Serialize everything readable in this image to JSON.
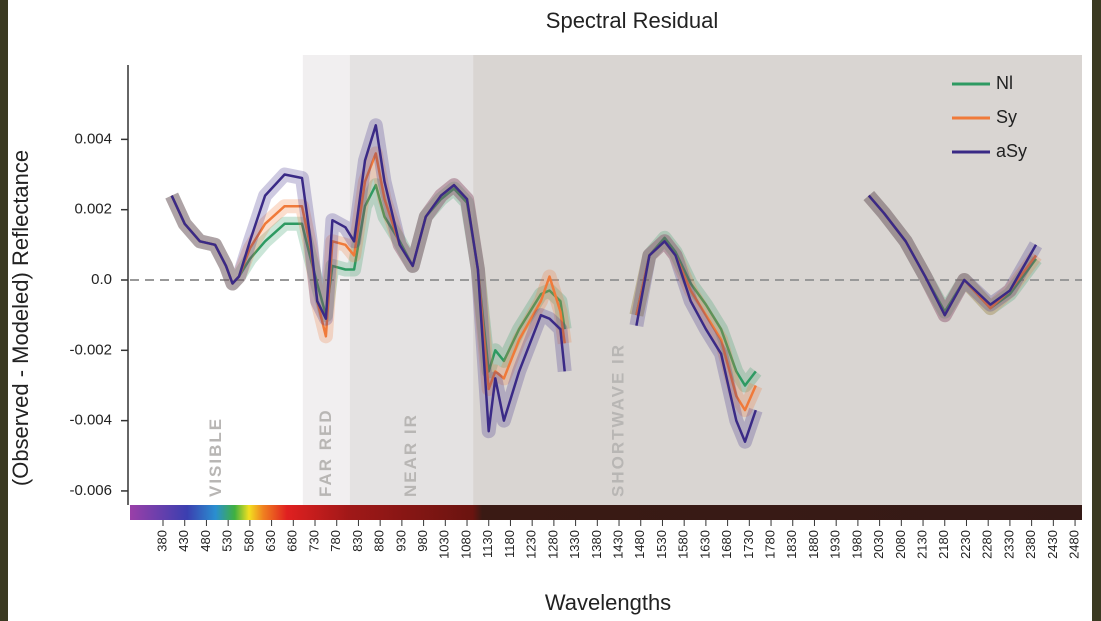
{
  "chart_data": {
    "type": "line",
    "title": "Spectral Residual",
    "x_label": "Wavelengths",
    "y_label": "(Observed - Modeled) Reflectance",
    "xlim": [
      304,
      2496
    ],
    "ylim": [
      -0.0064,
      0.0064
    ],
    "xticks": [
      380,
      430,
      480,
      530,
      580,
      630,
      680,
      730,
      780,
      830,
      880,
      930,
      980,
      1030,
      1080,
      1130,
      1180,
      1230,
      1280,
      1330,
      1380,
      1430,
      1480,
      1530,
      1580,
      1630,
      1680,
      1730,
      1780,
      1830,
      1880,
      1930,
      1980,
      2030,
      2080,
      2130,
      2180,
      2230,
      2280,
      2330,
      2380,
      2430,
      2480
    ],
    "yticks": [
      0.004,
      0.002,
      {
        "value": 0,
        "label": "0.0"
      },
      -0.002,
      -0.004,
      -0.006
    ],
    "reference_line": 0,
    "legend": "upper right",
    "regions": [
      {
        "label": "VISIBLE",
        "start": 304,
        "end": 702,
        "color": "#ffffff"
      },
      {
        "label": "FAR RED",
        "start": 702,
        "end": 810,
        "color": "#f1eff0"
      },
      {
        "label": "NEAR IR",
        "start": 810,
        "end": 1094,
        "color": "#e4e2e2"
      },
      {
        "label": "SHORTWAVE IR",
        "start": 1094,
        "end": 2496,
        "color": "#d9d5d2"
      }
    ],
    "x": [
      400,
      430,
      465,
      500,
      525,
      540,
      555,
      580,
      615,
      660,
      700,
      720,
      735,
      755,
      770,
      800,
      820,
      845,
      870,
      890,
      925,
      955,
      985,
      1020,
      1050,
      1080,
      1105,
      1130,
      1145,
      1165,
      1200,
      1250,
      1270,
      1295,
      1305,
      1400,
      1470,
      1500,
      1535,
      1560,
      1595,
      1630,
      1665,
      1700,
      1720,
      1745,
      1850,
      2005,
      2040,
      2090,
      2135,
      2180,
      2225,
      2285,
      2330,
      2390
    ],
    "series": [
      {
        "name": "Nl",
        "color": "#2e9a62",
        "values": [
          0.0024,
          0.0016,
          0.0011,
          0.001,
          0.0004,
          -0.0001,
          0.0001,
          0.0006,
          0.0011,
          0.0016,
          0.0016,
          0.0006,
          -0.0001,
          -0.001,
          0.0004,
          0.0003,
          0.0003,
          0.0021,
          0.0027,
          0.0018,
          0.0011,
          0.0004,
          0.0018,
          0.0023,
          0.0026,
          0.0022,
          0.0003,
          -0.0026,
          -0.002,
          -0.0023,
          -0.0014,
          -0.0004,
          -0.0003,
          -0.0006,
          -0.0014,
          null,
          -0.001,
          0.0007,
          0.0012,
          0.0008,
          -0.0001,
          -0.0007,
          -0.0014,
          -0.0026,
          -0.003,
          -0.0026,
          null,
          0.0024,
          0.0019,
          0.0011,
          0.0001,
          -0.0009,
          0,
          -0.0008,
          -0.0004,
          0.0006
        ]
      },
      {
        "name": "Sy",
        "color": "#f07a3a",
        "values": [
          0.0024,
          0.0016,
          0.0011,
          0.001,
          0.0004,
          -0.0001,
          0.0001,
          0.0009,
          0.0016,
          0.0021,
          0.0021,
          0.0009,
          -0.0006,
          -0.0016,
          0.0011,
          0.001,
          0.0007,
          0.0028,
          0.0036,
          0.0023,
          0.001,
          0.0004,
          0.0018,
          0.0024,
          0.0027,
          0.0023,
          0.0003,
          -0.0031,
          -0.0026,
          -0.0028,
          -0.0017,
          -0.0006,
          0.0001,
          -0.0009,
          -0.0018,
          null,
          -0.001,
          0.0007,
          0.0011,
          0.0007,
          -0.0003,
          -0.001,
          -0.0017,
          -0.0033,
          -0.0037,
          -0.003,
          null,
          0.0024,
          0.0019,
          0.0011,
          0.0001,
          -0.001,
          0,
          -0.0008,
          -0.0003,
          0.0007
        ]
      },
      {
        "name": "aSy",
        "color": "#3a2a86",
        "values": [
          0.0024,
          0.0016,
          0.0011,
          0.001,
          0.0004,
          -0.0001,
          0.0001,
          0.0011,
          0.0024,
          0.003,
          0.0029,
          0.0011,
          -0.0006,
          -0.0011,
          0.0017,
          0.0015,
          0.0011,
          0.0034,
          0.0044,
          0.0028,
          0.001,
          0.0004,
          0.0018,
          0.0024,
          0.0027,
          0.0023,
          0.0003,
          -0.0043,
          -0.0028,
          -0.004,
          -0.0026,
          -0.001,
          -0.0011,
          -0.0014,
          -0.0026,
          null,
          -0.0013,
          0.0007,
          0.0011,
          0.0007,
          -0.0006,
          -0.0014,
          -0.0021,
          -0.004,
          -0.0046,
          -0.0037,
          null,
          0.0024,
          0.0019,
          0.0011,
          0.0001,
          -0.001,
          0,
          -0.0007,
          -0.0003,
          0.001
        ]
      }
    ]
  }
}
